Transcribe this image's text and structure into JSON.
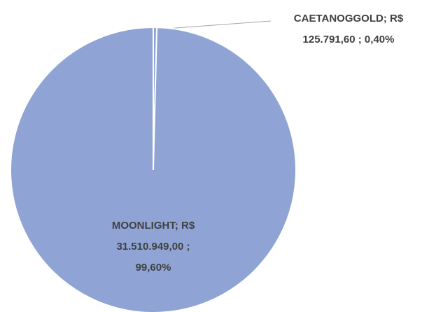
{
  "chart_data": {
    "type": "pie",
    "values": [
      125791.6,
      31510949.0
    ],
    "value_labels": [
      [
        "CAETANOGGOLD; R$",
        "125.791,60 ; 0,40%"
      ],
      [
        "MOONLIGHT; R$",
        "31.510.949,00 ;",
        "99,60%"
      ]
    ],
    "color": "#8fa4d4"
  }
}
